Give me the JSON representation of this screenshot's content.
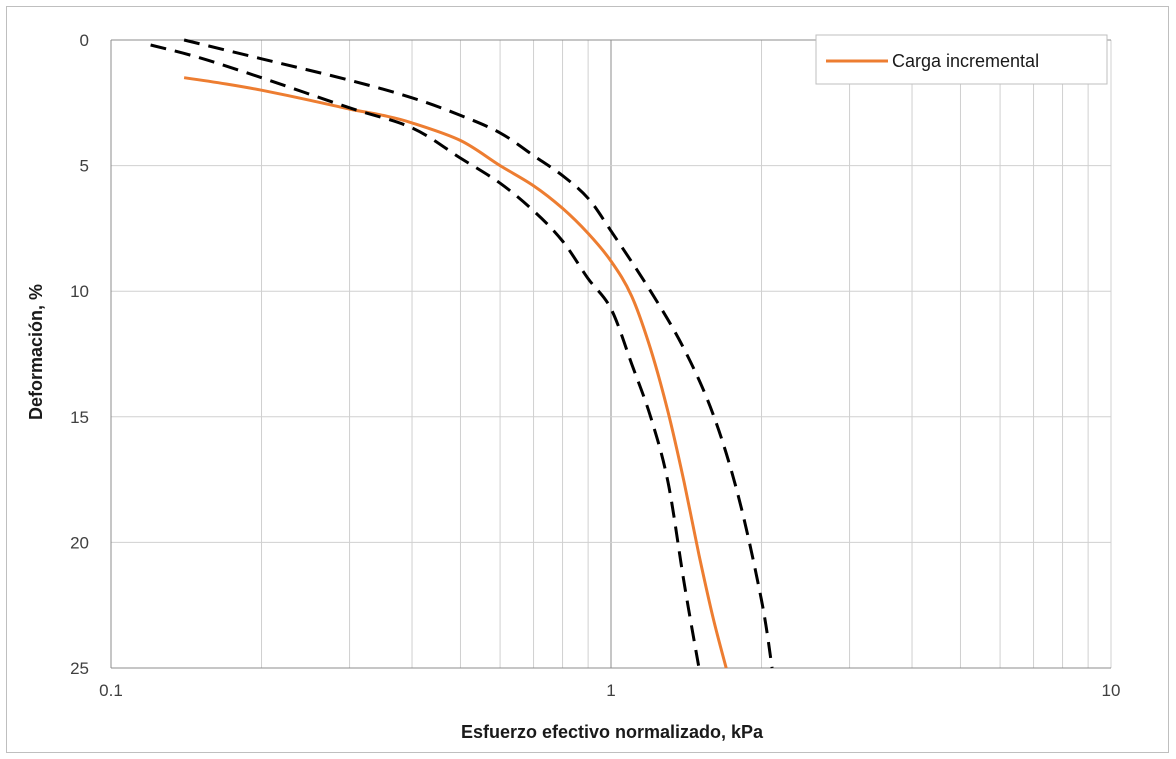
{
  "chart_data": {
    "type": "line",
    "xlabel": "Esfuerzo efectivo normalizado, kPa",
    "ylabel": "Deformación, %",
    "x_scale": "log",
    "xlim": [
      0.1,
      10
    ],
    "ylim": [
      0,
      25
    ],
    "y_inverted": true,
    "x_tick_labels": [
      "0.1",
      "1",
      "10"
    ],
    "y_tick_labels": [
      "0",
      "5",
      "10",
      "15",
      "20",
      "25"
    ],
    "grid": true,
    "legend_position": "top-right",
    "series": [
      {
        "name": "Carga incremental",
        "color": "#ED7D31",
        "style": "solid",
        "points": [
          [
            0.14,
            1.5
          ],
          [
            0.17,
            1.75
          ],
          [
            0.2,
            2.0
          ],
          [
            0.25,
            2.4
          ],
          [
            0.3,
            2.75
          ],
          [
            0.35,
            3.0
          ],
          [
            0.4,
            3.3
          ],
          [
            0.5,
            4.0
          ],
          [
            0.6,
            5.0
          ],
          [
            0.7,
            5.8
          ],
          [
            0.8,
            6.7
          ],
          [
            0.9,
            7.7
          ],
          [
            1.0,
            8.8
          ],
          [
            1.1,
            10.2
          ],
          [
            1.2,
            12.3
          ],
          [
            1.3,
            14.8
          ],
          [
            1.4,
            17.6
          ],
          [
            1.5,
            20.5
          ],
          [
            1.6,
            23.0
          ],
          [
            1.7,
            25.0
          ]
        ]
      },
      {
        "color": "#000000",
        "style": "dashed",
        "points": [
          [
            0.12,
            0.2
          ],
          [
            0.15,
            0.7
          ],
          [
            0.2,
            1.5
          ],
          [
            0.3,
            2.7
          ],
          [
            0.4,
            3.5
          ],
          [
            0.5,
            4.7
          ],
          [
            0.6,
            5.7
          ],
          [
            0.7,
            6.8
          ],
          [
            0.8,
            8.0
          ],
          [
            0.9,
            9.5
          ],
          [
            1.0,
            10.7
          ],
          [
            1.1,
            12.9
          ],
          [
            1.2,
            15.0
          ],
          [
            1.3,
            17.6
          ],
          [
            1.4,
            21.6
          ],
          [
            1.5,
            25.0
          ]
        ]
      },
      {
        "color": "#000000",
        "style": "dashed",
        "points": [
          [
            0.14,
            0.0
          ],
          [
            0.2,
            0.75
          ],
          [
            0.3,
            1.6
          ],
          [
            0.4,
            2.3
          ],
          [
            0.5,
            3.0
          ],
          [
            0.6,
            3.7
          ],
          [
            0.7,
            4.6
          ],
          [
            0.8,
            5.4
          ],
          [
            0.9,
            6.3
          ],
          [
            1.0,
            7.6
          ],
          [
            1.2,
            10.0
          ],
          [
            1.4,
            12.3
          ],
          [
            1.6,
            14.9
          ],
          [
            1.8,
            18.2
          ],
          [
            2.0,
            22.3
          ],
          [
            2.1,
            25.0
          ]
        ]
      }
    ]
  }
}
